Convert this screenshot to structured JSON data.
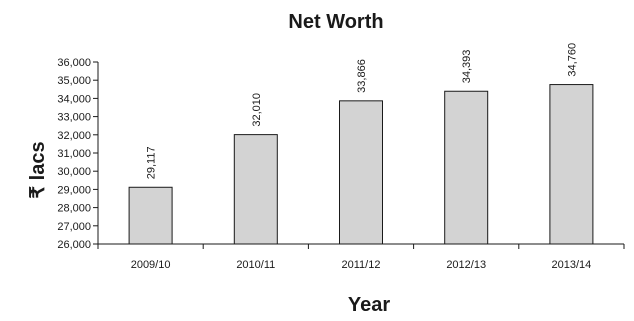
{
  "chart_data": {
    "type": "bar",
    "title": "Net Worth",
    "xlabel": "Year",
    "ylabel": "₹ lacs",
    "categories": [
      "2009/10",
      "2010/11",
      "2011/12",
      "2012/13",
      "2013/14"
    ],
    "values": [
      29117,
      32010,
      33866,
      34393,
      34760
    ],
    "data_labels": [
      "29,117",
      "32,010",
      "33,866",
      "34,393",
      "34,760"
    ],
    "ylim": [
      26000,
      36000
    ],
    "yticks": [
      26000,
      27000,
      28000,
      29000,
      30000,
      31000,
      32000,
      33000,
      34000,
      35000,
      36000
    ],
    "ytick_labels": [
      "26,000",
      "27,000",
      "28,000",
      "29,000",
      "30,000",
      "31,000",
      "32,000",
      "33,000",
      "34,000",
      "35,000",
      "36,000"
    ],
    "grid": false,
    "legend": "none",
    "colors": {
      "bar_fill": "#d3d3d3",
      "bar_stroke": "#1a1a1a",
      "axis": "#1a1a1a"
    }
  }
}
